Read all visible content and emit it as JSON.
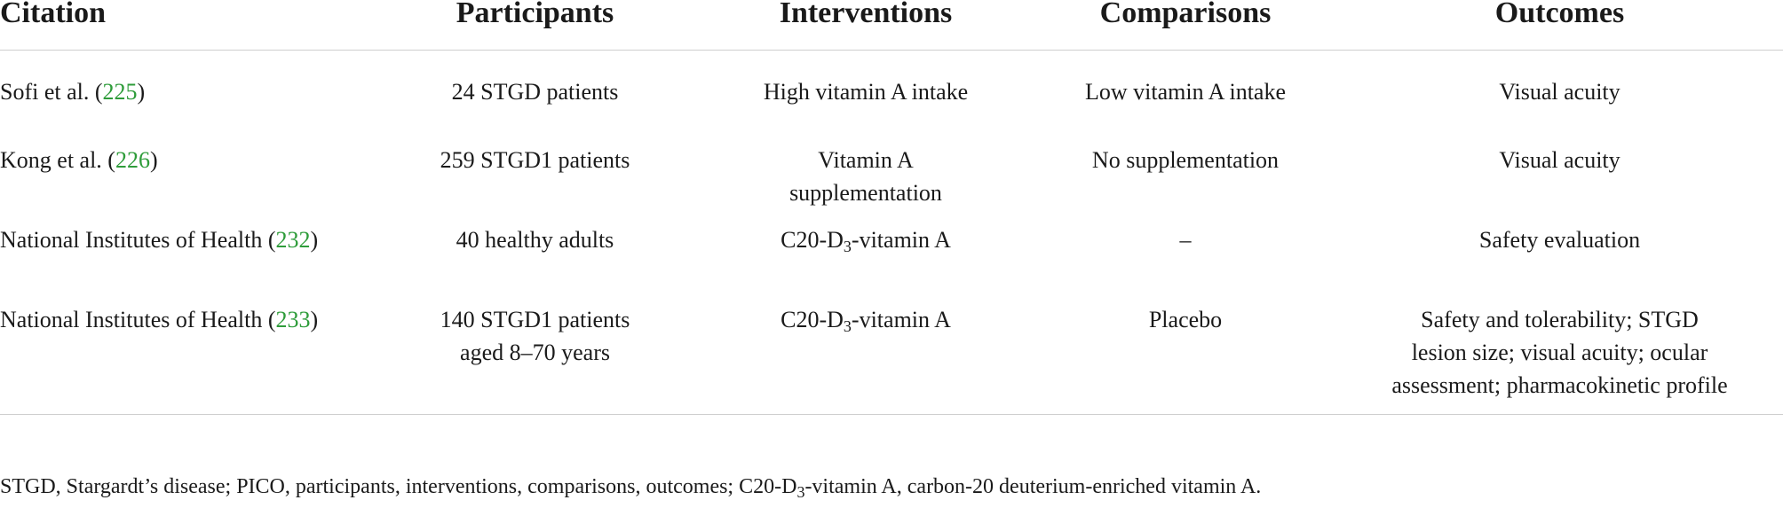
{
  "headers": {
    "citation": "Citation",
    "participants": "Participants",
    "interventions": "Interventions",
    "comparisons": "Comparisons",
    "outcomes": "Outcomes"
  },
  "rows": [
    {
      "citation_text": "Sofi et al. (",
      "citation_ref": "225",
      "citation_close": ")",
      "participants": "24 STGD patients",
      "interventions": "High vitamin A intake",
      "comparisons": "Low vitamin A intake",
      "outcomes": "Visual acuity"
    },
    {
      "citation_text": "Kong et al. (",
      "citation_ref": "226",
      "citation_close": ")",
      "participants": "259 STGD1 patients",
      "interventions": "Vitamin A supplementation",
      "comparisons": "No supplementation",
      "outcomes": "Visual acuity"
    },
    {
      "citation_text": "National Institutes of Health (",
      "citation_ref": "232",
      "citation_close": ")",
      "participants": "40 healthy adults",
      "interventions_pre": "C20-D",
      "interventions_sub": "3",
      "interventions_post": "-vitamin A",
      "comparisons": "–",
      "outcomes": "Safety evaluation"
    },
    {
      "citation_text": "National Institutes of Health (",
      "citation_ref": "233",
      "citation_close": ")",
      "participants": "140 STGD1 patients aged 8–70 years",
      "interventions_pre": "C20-D",
      "interventions_sub": "3",
      "interventions_post": "-vitamin A",
      "comparisons": "Placebo",
      "outcomes": "Safety and tolerability; STGD lesion size; visual acuity; ocular assessment; pharmacokinetic profile"
    }
  ],
  "footnote": {
    "pre": "STGD, Stargardt’s disease; PICO, participants, interventions, comparisons, outcomes; C20-D",
    "sub": "3",
    "post": "-vitamin A, carbon-20 deuterium-enriched vitamin A."
  }
}
